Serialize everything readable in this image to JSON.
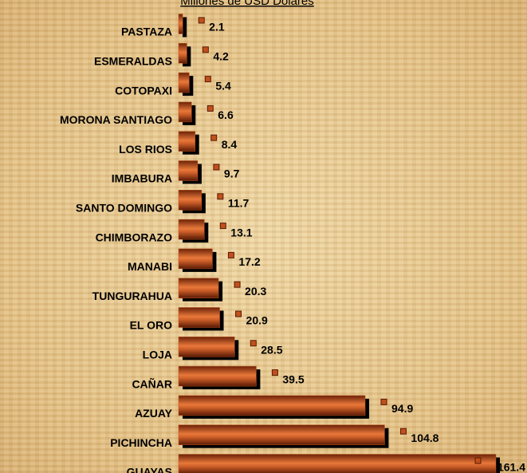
{
  "chart_data": {
    "type": "bar",
    "orientation": "horizontal",
    "title": "Millones de USD Dólares",
    "categories": [
      "PASTAZA",
      "ESMERALDAS",
      "COTOPAXI",
      "MORONA SANTIAGO",
      "LOS RIOS",
      "IMBABURA",
      "SANTO DOMINGO",
      "CHIMBORAZO",
      "MANABI",
      "TUNGURAHUA",
      "EL ORO",
      "LOJA",
      "CAÑAR",
      "AZUAY",
      "PICHINCHA",
      "GUAYAS"
    ],
    "values": [
      2.1,
      4.2,
      5.4,
      6.6,
      8.4,
      9.7,
      11.7,
      13.1,
      17.2,
      20.3,
      20.9,
      28.5,
      39.5,
      94.9,
      104.8,
      161.4
    ],
    "color": "#c0501c",
    "xlim": [
      0,
      161.4
    ]
  }
}
